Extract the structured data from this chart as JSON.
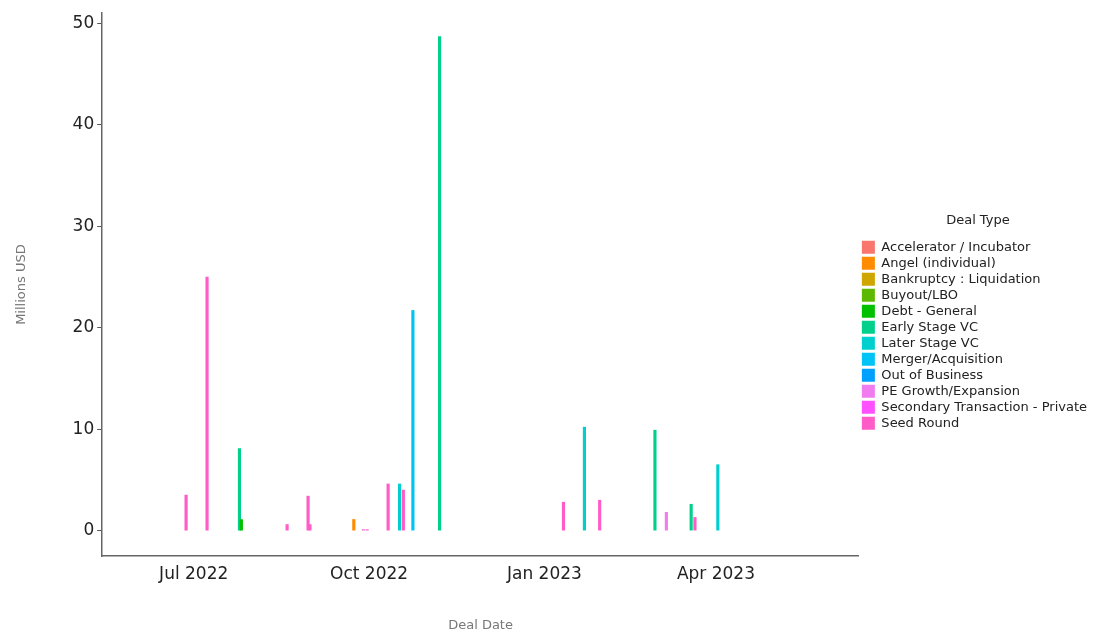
{
  "chart_data": {
    "type": "bar",
    "xlabel": "Deal Date",
    "ylabel": "Millions USD",
    "legend_title": "Deal Type",
    "legend": "right",
    "grid": false,
    "xlim": [
      "2022-05-14",
      "2023-06-15"
    ],
    "xticks": [
      {
        "value": "2022-07-01",
        "label": "Jul 2022"
      },
      {
        "value": "2022-10-01",
        "label": "Oct 2022"
      },
      {
        "value": "2023-01-01",
        "label": "Jan 2023"
      },
      {
        "value": "2023-04-01",
        "label": "Apr 2023"
      }
    ],
    "ylim": [
      -2.5,
      51
    ],
    "yticks": [
      0,
      10,
      20,
      30,
      40,
      50
    ],
    "series": [
      {
        "name": "Accelerator / Incubator",
        "color": "#f8766d"
      },
      {
        "name": "Angel (individual)",
        "color": "#ff8c00",
        "x": [
          "2022-09-23"
        ],
        "values": [
          1.1
        ]
      },
      {
        "name": "Bankruptcy : Liquidation",
        "color": "#cfa500"
      },
      {
        "name": "Buyout/LBO",
        "color": "#5cb800"
      },
      {
        "name": "Debt - General",
        "color": "#00c000",
        "x": [
          "2022-07-26"
        ],
        "values": [
          1.1
        ]
      },
      {
        "name": "Early Stage VC",
        "color": "#00d08c",
        "x": [
          "2022-07-25",
          "2022-11-07",
          "2023-02-28",
          "2023-03-19"
        ],
        "values": [
          8.1,
          48.7,
          9.9,
          2.6
        ]
      },
      {
        "name": "Later Stage VC",
        "color": "#00cfcf",
        "x": [
          "2022-10-17",
          "2023-01-22",
          "2023-04-02"
        ],
        "values": [
          4.6,
          10.2,
          6.5
        ]
      },
      {
        "name": "Merger/Acquisition",
        "color": "#00c4f5",
        "x": [
          "2022-10-24"
        ],
        "values": [
          21.7
        ]
      },
      {
        "name": "Out of Business",
        "color": "#00a0ff"
      },
      {
        "name": "PE Growth/Expansion",
        "color": "#f07cf0",
        "x": [
          "2023-03-06"
        ],
        "values": [
          1.8
        ]
      },
      {
        "name": "Secondary Transaction - Private",
        "color": "#ff50ff"
      },
      {
        "name": "Seed Round",
        "color": "#ff5cc8",
        "x": [
          "2022-06-27",
          "2022-07-08",
          "2022-08-19",
          "2022-08-30",
          "2022-08-31",
          "2022-09-28",
          "2022-09-30",
          "2022-10-11",
          "2022-10-19",
          "2023-01-11",
          "2023-01-30",
          "2023-03-21"
        ],
        "values": [
          3.5,
          25.0,
          0.6,
          3.4,
          0.6,
          0.1,
          0.1,
          4.6,
          4.0,
          2.8,
          3.0,
          1.3
        ]
      }
    ]
  }
}
